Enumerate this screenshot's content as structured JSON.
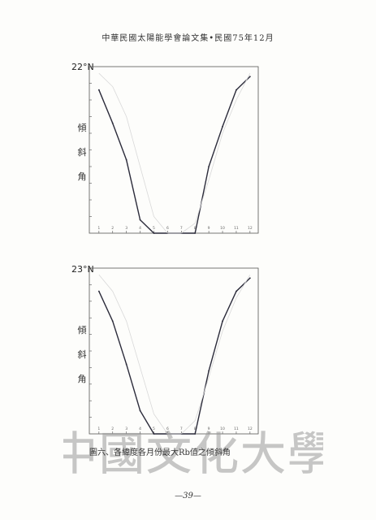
{
  "header": {
    "title": "中華民國太陽能學會論文集•民國75年12月"
  },
  "charts": [
    {
      "latitude_label": "22°N",
      "ylabel_chars": [
        "傾",
        "斜",
        "角"
      ],
      "chart_data": {
        "type": "line",
        "title": "",
        "x": [
          1,
          2,
          3,
          4,
          5,
          6,
          7,
          8,
          9,
          10,
          11,
          12
        ],
        "xticks": [
          "1",
          "2",
          "3",
          "4",
          "5",
          "6",
          "7",
          "8",
          "9",
          "10",
          "11",
          "12"
        ],
        "xlim": [
          0.3,
          12.6
        ],
        "ylim": [
          0,
          50
        ],
        "grid": false,
        "series": [
          {
            "style": "solid",
            "values": [
              43,
              33,
              22,
              4,
              0,
              0,
              0,
              0,
              20,
              32,
              43,
              47
            ]
          },
          {
            "style": "faint",
            "values": [
              48,
              44,
              35,
              20,
              5,
              0,
              0,
              3,
              16,
              30,
              40,
              48
            ]
          }
        ]
      }
    },
    {
      "latitude_label": "23°N",
      "ylabel_chars": [
        "傾",
        "斜",
        "角"
      ],
      "chart_data": {
        "type": "line",
        "title": "",
        "x": [
          1,
          2,
          3,
          4,
          5,
          6,
          7,
          8,
          9,
          10,
          11,
          12
        ],
        "xticks": [
          "1",
          "2",
          "3",
          "4",
          "5",
          "6",
          "7",
          "8",
          "9",
          "10",
          "11",
          "12"
        ],
        "xlim": [
          0.3,
          12.6
        ],
        "ylim": [
          0,
          50
        ],
        "grid": false,
        "series": [
          {
            "style": "solid",
            "values": [
              43,
              34,
              21,
              7,
              0,
              0,
              0,
              0,
              19,
              34,
              43,
              47
            ]
          },
          {
            "style": "faint",
            "values": [
              48,
              43,
              34,
              20,
              6,
              0,
              0,
              4,
              17,
              31,
              41,
              48
            ]
          }
        ]
      }
    }
  ],
  "caption": "圖六、各緯度各月份最大Rb值之傾斜角",
  "watermark": "中國文化大學",
  "footer": {
    "page_number": "—39—"
  },
  "colors": {
    "ink": "#2b2b3a",
    "faint": "#d9d9d9",
    "axis": "#555555",
    "watermark": "#9a9a9a"
  }
}
